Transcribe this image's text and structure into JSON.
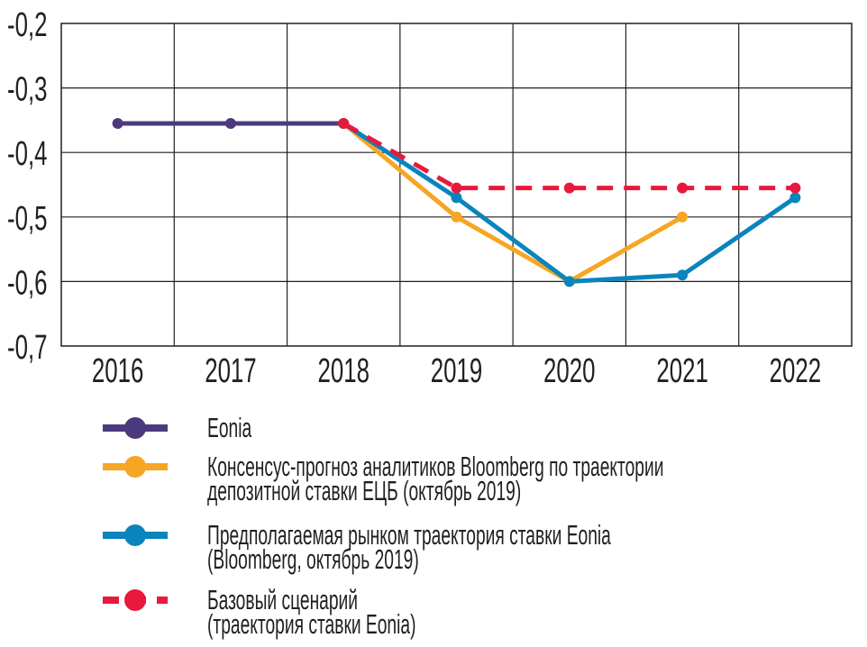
{
  "chart_data": {
    "type": "line",
    "title": "",
    "xlabel": "",
    "ylabel": "",
    "categories": [
      "2016",
      "2017",
      "2018",
      "2019",
      "2020",
      "2021",
      "2022"
    ],
    "ylim": [
      -0.7,
      -0.2
    ],
    "yticks": [
      -0.2,
      -0.3,
      -0.4,
      -0.5,
      -0.6,
      -0.7
    ],
    "ytick_labels": [
      "-0,2",
      "-0,3",
      "-0,4",
      "-0,5",
      "-0,6",
      "-0,7"
    ],
    "grid": true,
    "legend_position": "bottom",
    "series": [
      {
        "name": "Eonia",
        "color": "#4b3a7d",
        "dashed": false,
        "values": [
          -0.355,
          -0.355,
          -0.355,
          null,
          null,
          null,
          null
        ]
      },
      {
        "name": "Консенсус-прогноз аналитиков Bloomberg по траектории депозитной ставки ЕЦБ (октябрь 2019)",
        "lines": [
          "Консенсус-прогноз аналитиков Bloomberg по траектории",
          "депозитной ставки ЕЦБ (октябрь 2019)"
        ],
        "color": "#f6a623",
        "dashed": false,
        "values": [
          null,
          null,
          -0.355,
          -0.5,
          -0.6,
          -0.5,
          null
        ]
      },
      {
        "name": "Предполагаемая рынком траектория ставки Eonia (Bloomberg, октябрь 2019)",
        "lines": [
          "Предполагаемая рынком траектория ставки Eonia",
          "(Bloomberg, октябрь 2019)"
        ],
        "color": "#0a84bc",
        "dashed": false,
        "values": [
          null,
          null,
          -0.355,
          -0.47,
          -0.6,
          -0.59,
          -0.47
        ]
      },
      {
        "name": "Базовый сценарий (траектория ставки Eonia)",
        "lines": [
          "Базовый сценарий",
          "(траектория ставки Eonia)"
        ],
        "color": "#e8193c",
        "dashed": true,
        "values": [
          null,
          null,
          -0.355,
          -0.455,
          -0.455,
          -0.455,
          -0.455
        ]
      }
    ]
  }
}
